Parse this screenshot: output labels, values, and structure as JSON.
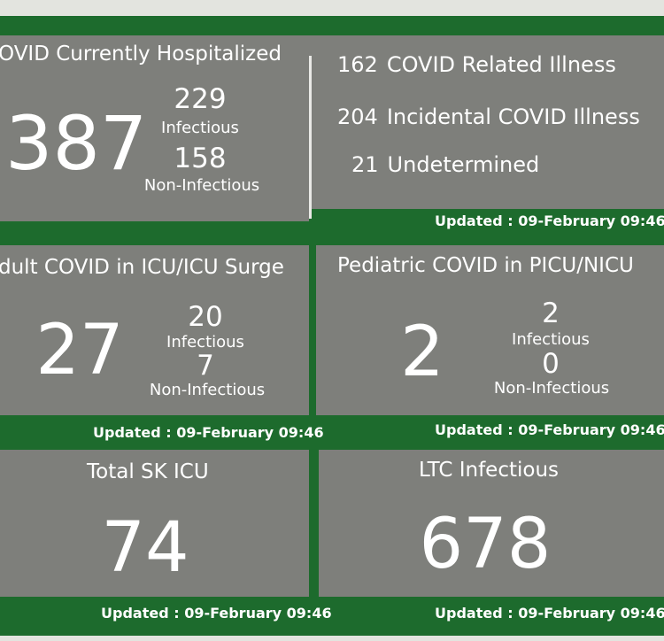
{
  "hospitalized": {
    "title": "OVID Currently Hospitalized",
    "total": "387",
    "infectious_value": "229",
    "infectious_label": "Infectious",
    "non_infectious_value": "158",
    "non_infectious_label": "Non-Infectious"
  },
  "breakdown": {
    "rows": [
      {
        "value": "162",
        "label": "COVID Related Illness"
      },
      {
        "value": "204",
        "label": "Incidental COVID Illness"
      },
      {
        "value": "21",
        "label": "Undetermined"
      }
    ],
    "updated": "Updated : 09-February 09:46"
  },
  "adult_icu": {
    "title": "dult COVID in ICU/ICU Surge",
    "total": "27",
    "infectious_value": "20",
    "infectious_label": "Infectious",
    "non_infectious_value": "7",
    "non_infectious_label": "Non-Infectious",
    "updated": "Updated : 09-February 09:46"
  },
  "pediatric": {
    "title": "Pediatric COVID in PICU/NICU",
    "total": "2",
    "infectious_value": "2",
    "infectious_label": "Infectious",
    "non_infectious_value": "0",
    "non_infectious_label": "Non-Infectious",
    "updated": "Updated : 09-February 09:46"
  },
  "sk_icu": {
    "title": "Total SK ICU",
    "total": "74",
    "updated": "Updated : 09-February 09:46"
  },
  "ltc": {
    "title": "LTC Infectious",
    "total": "678",
    "updated": "Updated : 09-February 09:46"
  },
  "colors": {
    "frame_green": "#1d6b2d",
    "panel_gray": "#7e7f7b",
    "text": "#ffffff"
  }
}
